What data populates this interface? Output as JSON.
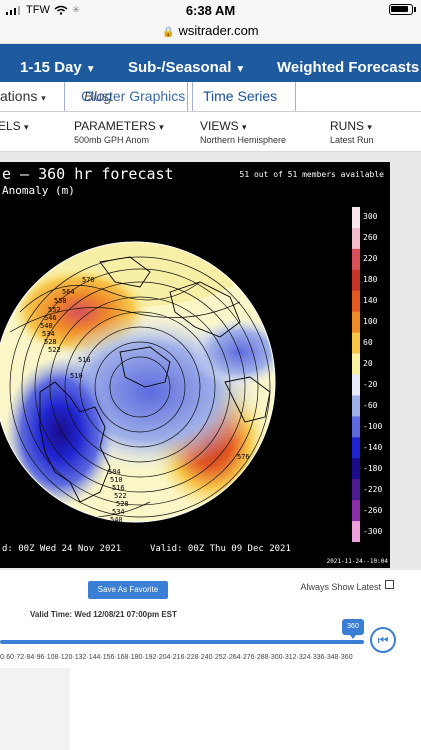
{
  "status": {
    "carrier": "TFW",
    "time": "6:38 AM"
  },
  "browser": {
    "domain": "wsitrader.com"
  },
  "nav": {
    "item1": "1-15 Day",
    "item2": "Sub-/Seasonal",
    "item3": "Weighted Forecasts"
  },
  "subnav": {
    "left_partial": "ations",
    "blog": "Blog",
    "cluster_graphics": "Cluster Graphics",
    "time_series": "Time Series"
  },
  "params": {
    "models_partial": "ELS",
    "parameters_label": "PARAMETERS",
    "parameters_value": "500mb GPH Anom",
    "views_label": "VIEWS",
    "views_value": "Northern Hemisphere",
    "runs_label": "RUNS",
    "runs_value": "Latest Run"
  },
  "map": {
    "title": "e — 360 hr forecast",
    "subtitle": "Anomaly (m)",
    "members": "51 out of 51 members available",
    "init": "d: 00Z Wed 24 Nov 2021",
    "valid": "Valid: 00Z Thu 09 Dec 2021",
    "stamp": "2021-11-24--10:04",
    "colorbar_labels": [
      "300",
      "260",
      "220",
      "180",
      "140",
      "100",
      "60",
      "20",
      "-20",
      "-60",
      "-100",
      "-140",
      "-180",
      "-220",
      "-260",
      "-300"
    ],
    "colorbar_colors": [
      "#fbe6ec",
      "#f3bccb",
      "#d8505a",
      "#c43428",
      "#e25a22",
      "#ef8a2a",
      "#f7c54a",
      "#faf2a0",
      "#e6ecfa",
      "#9fb0e8",
      "#5d6bdf",
      "#1f24d0",
      "#1a0c8a",
      "#4c1b8f",
      "#8a2ea8",
      "#f0a0d8"
    ],
    "contour_labels": [
      "570",
      "564",
      "558",
      "552",
      "546",
      "540",
      "534",
      "528",
      "522",
      "516",
      "510",
      "576",
      "504",
      "510",
      "516",
      "522",
      "528",
      "534",
      "540",
      "546",
      "552",
      "558",
      "564",
      "570"
    ]
  },
  "controls": {
    "save_favorite": "Save As Favorite",
    "always_show_latest": "Always Show Latest",
    "valid_time": "Valid Time: Wed 12/08/21 07:00pm EST",
    "slider_value": "360",
    "slider_position": 1.0,
    "tick_labels": "0·60·72·84·96·108·120·132·144·156·168·180·192·204·216·228·240·252·264·276·288·300·312·324·336·348·360"
  }
}
